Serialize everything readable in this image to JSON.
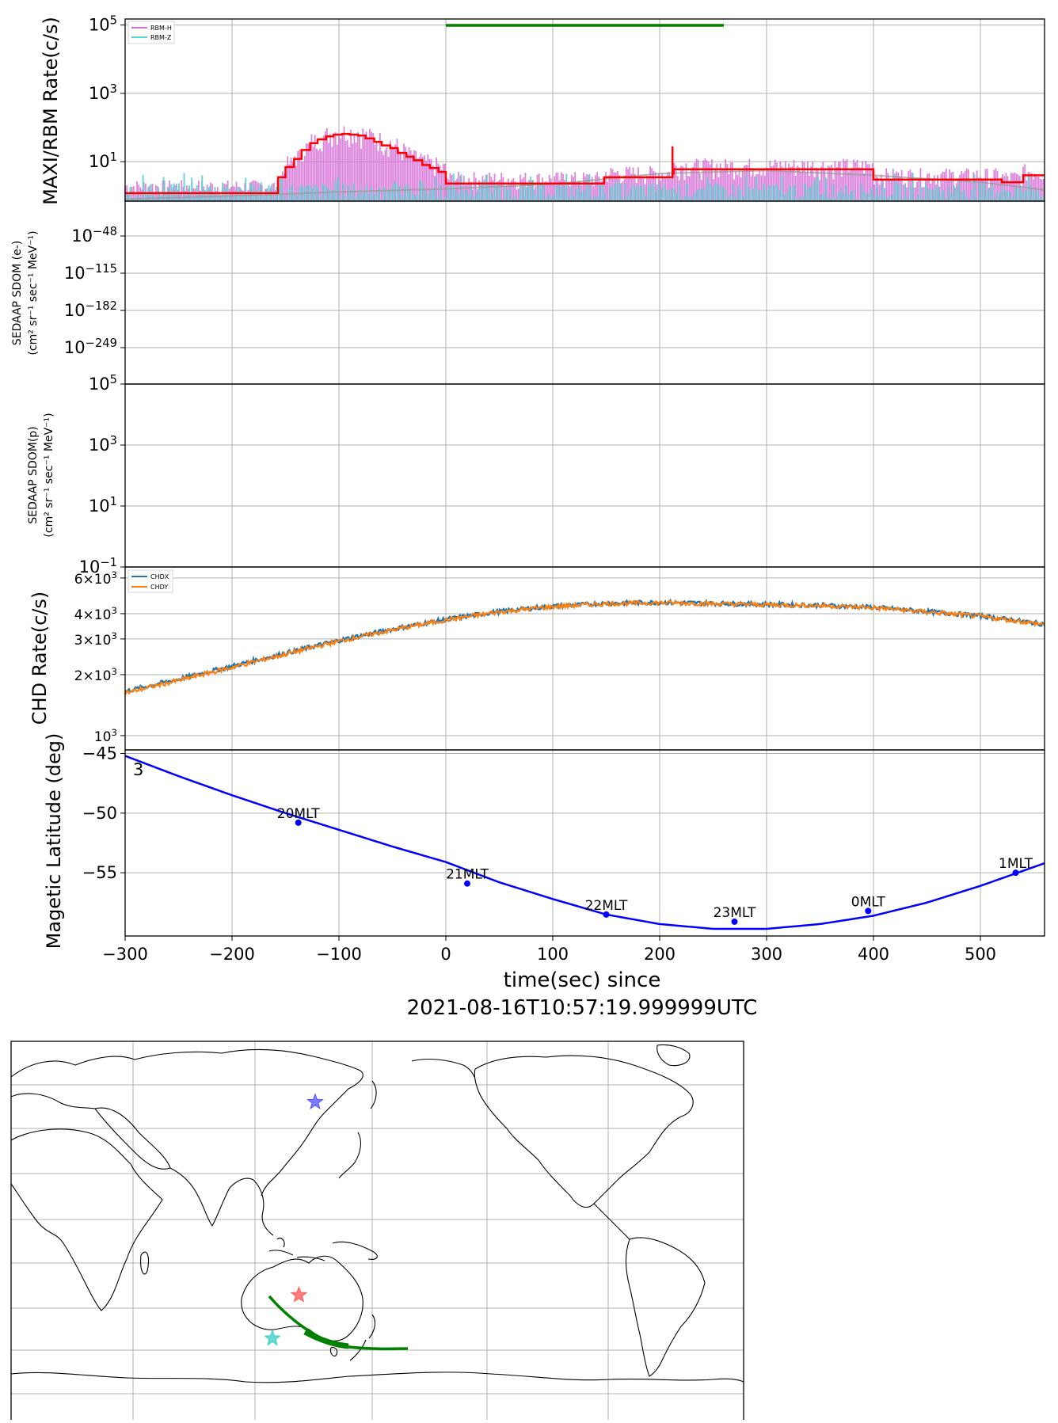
{
  "chart_data": [
    {
      "type": "line",
      "panel": "maxi-rbm-rate",
      "ylabel": "MAXI/RBM Rate(c/s)",
      "yscale": "log",
      "ylim": [
        0.7,
        150000
      ],
      "xlim": [
        -300,
        560
      ],
      "ytick_labels": [
        {
          "value": 100000,
          "base": "10",
          "exp": "5"
        },
        {
          "value": 1000,
          "base": "10",
          "exp": "3"
        },
        {
          "value": 10,
          "base": "10",
          "exp": "1"
        }
      ],
      "legend": {
        "position": "top-left",
        "entries": [
          {
            "name": "RBM-H",
            "color": "#d670d6"
          },
          {
            "name": "RBM-Z",
            "color": "#5bd3cf"
          }
        ]
      },
      "green_bar": {
        "x": [
          0,
          260
        ],
        "y": 130000,
        "color": "#008000"
      },
      "series": [
        {
          "name": "RBM-H",
          "color": "#d670d6"
        },
        {
          "name": "RBM-Z",
          "color": "#5bd3cf"
        },
        {
          "name": "",
          "color": "#ff0000",
          "step": true,
          "x": [
            -300,
            -165,
            -157,
            -150,
            -142,
            -135,
            -127,
            -120,
            -112,
            -105,
            -97,
            -90,
            -82,
            -75,
            -67,
            -60,
            -52,
            -45,
            -37,
            -30,
            -22,
            -15,
            -7,
            0,
            145,
            148,
            212,
            213,
            330,
            400,
            520,
            540,
            560
          ],
          "y": [
            1.2,
            1.2,
            3.5,
            7,
            12,
            22,
            35,
            45,
            55,
            62,
            65,
            62,
            58,
            48,
            38,
            30,
            25,
            18,
            14,
            11,
            8,
            6.5,
            5,
            2.3,
            2.3,
            3.5,
            4.5,
            6,
            6,
            3,
            2.5,
            4,
            4
          ]
        },
        {
          "name": "",
          "color": "#999999",
          "x": [
            -300,
            -200,
            -100,
            0,
            100,
            200,
            300,
            400,
            500,
            560
          ],
          "y": [
            0.8,
            1.0,
            1.3,
            1.6,
            2.2,
            4.5,
            5.5,
            4.0,
            2.5,
            1.5
          ]
        }
      ],
      "annotations": [
        {
          "type": "spike",
          "x": 212,
          "y": 28,
          "color": "#ff0000"
        }
      ]
    },
    {
      "type": "line",
      "panel": "sedaap-sdom-e",
      "ylabel_lines": [
        "SEDAAP SDOM (e-)",
        "(cm² sr⁻¹ sec⁻¹ MeV⁻¹)"
      ],
      "yscale": "log",
      "ytick_labels": [
        {
          "base": "10",
          "exp": "−48"
        },
        {
          "base": "10",
          "exp": "−115"
        },
        {
          "base": "10",
          "exp": "−182"
        },
        {
          "base": "10",
          "exp": "−249"
        }
      ],
      "series": []
    },
    {
      "type": "line",
      "panel": "sedaap-sdom-p",
      "ylabel_lines": [
        "SEDAAP SDOM(p)",
        "(cm² sr⁻¹ sec⁻¹ MeV⁻¹)"
      ],
      "yscale": "log",
      "ylim": [
        0.1,
        100000
      ],
      "ytick_labels": [
        {
          "value": 100000,
          "base": "10",
          "exp": "5"
        },
        {
          "value": 1000,
          "base": "10",
          "exp": "3"
        },
        {
          "value": 10,
          "base": "10",
          "exp": "1"
        },
        {
          "value": 0.1,
          "base": "10",
          "exp": "−1"
        }
      ],
      "series": []
    },
    {
      "type": "line",
      "panel": "chd-rate",
      "ylabel": "CHD Rate(c/s)",
      "yscale": "log",
      "ylim": [
        850,
        6800
      ],
      "xlim": [
        -300,
        560
      ],
      "ytick_labels": [
        {
          "value": 6000,
          "mant": "6",
          "base": "10",
          "exp": "3"
        },
        {
          "value": 4000,
          "mant": "4",
          "base": "10",
          "exp": "3"
        },
        {
          "value": 3000,
          "mant": "3",
          "base": "10",
          "exp": "3"
        },
        {
          "value": 2000,
          "mant": "2",
          "base": "10",
          "exp": "3"
        },
        {
          "value": 1000,
          "mant": "",
          "base": "10",
          "exp": "3"
        }
      ],
      "legend": {
        "position": "top-left",
        "entries": [
          {
            "name": "CHDX",
            "color": "#1f77b4"
          },
          {
            "name": "CHDY",
            "color": "#ff7f0e"
          }
        ]
      },
      "series": [
        {
          "name": "CHDX",
          "color": "#1f77b4",
          "x": [
            -300,
            -250,
            -200,
            -150,
            -100,
            -50,
            0,
            50,
            100,
            150,
            200,
            250,
            300,
            350,
            400,
            450,
            500,
            560
          ],
          "y": [
            1650,
            1900,
            2200,
            2550,
            2950,
            3350,
            3750,
            4100,
            4350,
            4500,
            4550,
            4500,
            4450,
            4400,
            4300,
            4100,
            3900,
            3550
          ]
        },
        {
          "name": "CHDY",
          "color": "#ff7f0e",
          "x": [
            -300,
            -250,
            -200,
            -150,
            -100,
            -50,
            0,
            50,
            100,
            150,
            200,
            250,
            300,
            350,
            400,
            450,
            500,
            560
          ],
          "y": [
            1620,
            1870,
            2170,
            2520,
            2920,
            3320,
            3720,
            4080,
            4330,
            4480,
            4530,
            4480,
            4430,
            4380,
            4280,
            4080,
            3880,
            3530
          ]
        }
      ]
    },
    {
      "type": "line",
      "panel": "magnetic-latitude",
      "ylabel": "Magetic Latitude  (deg)",
      "xlabel_lines": [
        "time(sec) since",
        "2021-08-16T10:57:19.999999UTC"
      ],
      "xlim": [
        -300,
        560
      ],
      "ylim": [
        -60.3,
        -44.7
      ],
      "xtick_labels": [
        "−300",
        "−200",
        "−100",
        "0",
        "100",
        "200",
        "300",
        "400",
        "500"
      ],
      "xtick_values": [
        -300,
        -200,
        -100,
        0,
        100,
        200,
        300,
        400,
        500
      ],
      "ytick_labels": [
        {
          "value": -45,
          "label": "−45"
        },
        {
          "value": -50,
          "label": "−50"
        },
        {
          "value": -55,
          "label": "−55"
        }
      ],
      "top_label_overlap": "3",
      "series": [
        {
          "name": "",
          "color": "#0000ff",
          "x": [
            -300,
            -250,
            -200,
            -150,
            -100,
            -50,
            0,
            50,
            100,
            150,
            200,
            250,
            300,
            350,
            400,
            450,
            500,
            560
          ],
          "y": [
            -45.2,
            -46.9,
            -48.5,
            -50.0,
            -51.4,
            -52.8,
            -54.1,
            -55.8,
            -57.2,
            -58.5,
            -59.3,
            -59.7,
            -59.7,
            -59.3,
            -58.6,
            -57.5,
            -56.1,
            -54.2
          ]
        }
      ],
      "mlt_markers": [
        {
          "x": -138,
          "y": -50.8,
          "label": "20MLT"
        },
        {
          "x": 20,
          "y": -55.9,
          "label": "21MLT"
        },
        {
          "x": 150,
          "y": -58.5,
          "label": "22MLT"
        },
        {
          "x": 270,
          "y": -59.1,
          "label": "23MLT"
        },
        {
          "x": 395,
          "y": -58.2,
          "label": "0MLT"
        },
        {
          "x": 533,
          "y": -55.0,
          "label": "1MLT"
        }
      ]
    }
  ],
  "map": {
    "type": "world-map",
    "markers": [
      {
        "shape": "star",
        "color": "#5a5aff",
        "lon": 165,
        "lat": 62
      },
      {
        "shape": "star",
        "color": "#ff5a5a",
        "lon": 157,
        "lat": -27
      },
      {
        "shape": "star",
        "color": "#40d0c8",
        "lon": 144,
        "lat": -47
      }
    ],
    "track_color": "#008000"
  }
}
